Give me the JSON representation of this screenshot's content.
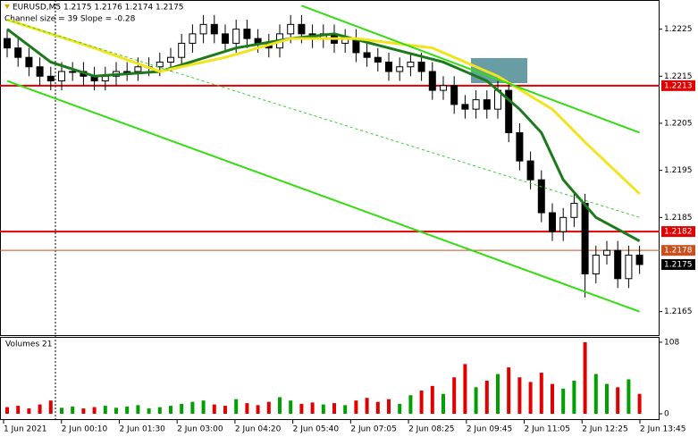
{
  "chart_data": [
    {
      "type": "candlestick",
      "title": "EURUSD,M5  1.2175 1.2176 1.2174 1.2175",
      "subtitle": "Channel size = 39 Slope = -0.28",
      "open": [
        1.2223,
        1.2221,
        1.2219,
        1.2217,
        1.2215,
        1.2214,
        1.2216,
        1.2216,
        1.2215,
        1.2214,
        1.2215,
        1.2216,
        1.2216,
        1.2217,
        1.2217,
        1.2218,
        1.2219,
        1.2222,
        1.2224,
        1.2226,
        1.2224,
        1.2222,
        1.2225,
        1.2223,
        1.2222,
        1.2221,
        1.2224,
        1.2226,
        1.2224,
        1.2223,
        1.2224,
        1.2222,
        1.2223,
        1.222,
        1.2219,
        1.2218,
        1.2216,
        1.2217,
        1.2218,
        1.2216,
        1.2212,
        1.2213,
        1.2209,
        1.2208,
        1.221,
        1.2208,
        1.2212,
        1.2203,
        1.2197,
        1.2193,
        1.2186,
        1.2182,
        1.2185,
        1.2188,
        1.2173,
        1.2177,
        1.2178,
        1.2172,
        1.2177
      ],
      "high": [
        1.2225,
        1.2223,
        1.2221,
        1.2219,
        1.2217,
        1.2218,
        1.2218,
        1.2218,
        1.2217,
        1.2217,
        1.2218,
        1.2218,
        1.2219,
        1.2219,
        1.222,
        1.2221,
        1.2224,
        1.2226,
        1.2228,
        1.2228,
        1.2226,
        1.2227,
        1.2227,
        1.2225,
        1.2224,
        1.2226,
        1.2228,
        1.2228,
        1.2226,
        1.2226,
        1.2226,
        1.2225,
        1.2225,
        1.2222,
        1.2221,
        1.222,
        1.2219,
        1.222,
        1.222,
        1.2218,
        1.2215,
        1.2215,
        1.2211,
        1.2212,
        1.2212,
        1.2214,
        1.2214,
        1.2205,
        1.2199,
        1.2195,
        1.2188,
        1.2187,
        1.219,
        1.219,
        1.2179,
        1.218,
        1.218,
        1.2179,
        1.2179
      ],
      "low": [
        1.2219,
        1.2217,
        1.2215,
        1.2213,
        1.2212,
        1.2212,
        1.2214,
        1.2213,
        1.2212,
        1.2212,
        1.2213,
        1.2214,
        1.2214,
        1.2215,
        1.2215,
        1.2216,
        1.2217,
        1.222,
        1.2222,
        1.2222,
        1.222,
        1.222,
        1.2221,
        1.222,
        1.2219,
        1.2219,
        1.2222,
        1.2222,
        1.2221,
        1.2221,
        1.222,
        1.222,
        1.2218,
        1.2217,
        1.2216,
        1.2214,
        1.2214,
        1.2215,
        1.2214,
        1.221,
        1.221,
        1.2207,
        1.2206,
        1.2206,
        1.2206,
        1.2206,
        1.2201,
        1.2195,
        1.2191,
        1.2184,
        1.218,
        1.218,
        1.2183,
        1.2168,
        1.2171,
        1.2175,
        1.217,
        1.217,
        1.2173
      ],
      "close": [
        1.2221,
        1.2219,
        1.2217,
        1.2215,
        1.2214,
        1.2216,
        1.2216,
        1.2215,
        1.2214,
        1.2215,
        1.2216,
        1.2216,
        1.2217,
        1.2217,
        1.2218,
        1.2219,
        1.2222,
        1.2224,
        1.2226,
        1.2224,
        1.2222,
        1.2225,
        1.2223,
        1.2222,
        1.2221,
        1.2224,
        1.2226,
        1.2224,
        1.2223,
        1.2224,
        1.2222,
        1.2223,
        1.222,
        1.2219,
        1.2218,
        1.2216,
        1.2217,
        1.2218,
        1.2216,
        1.2212,
        1.2213,
        1.2209,
        1.2208,
        1.221,
        1.2208,
        1.2212,
        1.2203,
        1.2197,
        1.2193,
        1.2186,
        1.2182,
        1.2185,
        1.2188,
        1.2173,
        1.2177,
        1.2178,
        1.2172,
        1.2177,
        1.2175
      ],
      "up_color": "#ffffff",
      "down_color": "#000000",
      "ylim": [
        1.216,
        1.2231
      ],
      "yticks": [
        1.2225,
        1.2215,
        1.2205,
        1.2195,
        1.2185,
        1.2165
      ],
      "grid": false,
      "lines": [
        {
          "color": "#1c7a1c",
          "width": 3,
          "dash": false,
          "x": [
            0,
            4,
            8,
            14,
            21,
            26,
            30,
            35,
            40,
            44,
            47,
            49,
            51,
            54,
            58
          ],
          "values": [
            1.2225,
            1.2218,
            1.2215,
            1.2216,
            1.2221,
            1.2223,
            1.2224,
            1.2221,
            1.2218,
            1.2214,
            1.2208,
            1.2203,
            1.2193,
            1.2185,
            1.218
          ]
        },
        {
          "color": "#f2e41c",
          "width": 3,
          "dash": false,
          "x": [
            0,
            8,
            14,
            20,
            26,
            32,
            39,
            45,
            50,
            53,
            58
          ],
          "values": [
            1.2227,
            1.2221,
            1.2216,
            1.2219,
            1.2223,
            1.2223,
            1.2221,
            1.2215,
            1.2208,
            1.2201,
            1.219
          ]
        },
        {
          "color": "#33dd11",
          "width": 2,
          "dash": false,
          "x": [
            0,
            58
          ],
          "values": [
            1.2214,
            1.2165
          ]
        },
        {
          "color": "#33dd11",
          "width": 2,
          "dash": false,
          "x": [
            27,
            58
          ],
          "values": [
            1.223,
            1.2203
          ]
        },
        {
          "color": "#33cc33",
          "width": 1,
          "dash": true,
          "x": [
            0,
            58
          ],
          "values": [
            1.2227,
            1.2185
          ]
        }
      ],
      "levels": [
        {
          "value": 1.2213,
          "color": "#e00000",
          "line": true
        },
        {
          "value": 1.2182,
          "color": "#e00000",
          "line": true
        },
        {
          "value": 1.2178,
          "color": "#c8501e",
          "line": true
        },
        {
          "value": 1.2175,
          "color": "#000000",
          "line": false
        }
      ]
    },
    {
      "type": "bar",
      "title": "Volumes 21",
      "values": [
        10,
        12,
        8,
        14,
        20,
        9,
        11,
        8,
        10,
        12,
        9,
        11,
        13,
        8,
        10,
        12,
        15,
        18,
        20,
        14,
        12,
        22,
        16,
        13,
        18,
        25,
        20,
        15,
        17,
        14,
        16,
        13,
        20,
        24,
        18,
        22,
        15,
        28,
        35,
        42,
        30,
        55,
        75,
        40,
        50,
        60,
        70,
        55,
        48,
        62,
        45,
        38,
        50,
        108,
        60,
        45,
        40,
        52,
        30
      ],
      "up_color": "#00a000",
      "down_color": "#e00000",
      "ylim": [
        0,
        116
      ],
      "yticks": [
        108,
        0
      ],
      "x_labels": [
        "1 Jun 2021",
        "2 Jun 00:10",
        "2 Jun 01:30",
        "2 Jun 03:00",
        "2 Jun 04:20",
        "2 Jun 05:40",
        "2 Jun 07:05",
        "2 Jun 08:25",
        "2 Jun 09:45",
        "2 Jun 11:05",
        "2 Jun 12:25",
        "2 Jun 13:45"
      ]
    }
  ]
}
